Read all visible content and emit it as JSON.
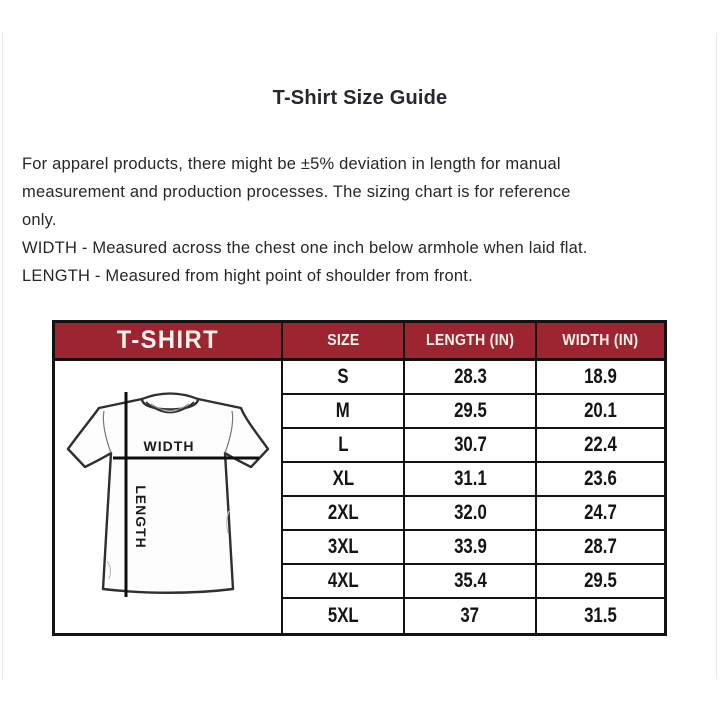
{
  "page": {
    "title": "T-Shirt Size Guide"
  },
  "description": {
    "paragraph_lines": [
      "For apparel products, there might be ±5% deviation in length for manual",
      "measurement and production processes. The sizing chart is for reference",
      "only."
    ],
    "width_note": "WIDTH - Measured across the chest one inch below armhole when laid flat.",
    "length_note": "LENGTH - Measured from hight point of shoulder from front."
  },
  "size_table": {
    "product_label": "T-SHIRT",
    "columns": [
      "SIZE",
      "LENGTH (IN)",
      "WIDTH (IN)"
    ],
    "rows": [
      {
        "size": "S",
        "length": "28.3",
        "width": "18.9"
      },
      {
        "size": "M",
        "length": "29.5",
        "width": "20.1"
      },
      {
        "size": "L",
        "length": "30.7",
        "width": "22.4"
      },
      {
        "size": "XL",
        "length": "31.1",
        "width": "23.6"
      },
      {
        "size": "2XL",
        "length": "32.0",
        "width": "24.7"
      },
      {
        "size": "3XL",
        "length": "33.9",
        "width": "28.7"
      },
      {
        "size": "4XL",
        "length": "35.4",
        "width": "29.5"
      },
      {
        "size": "5XL",
        "length": "37",
        "width": "31.5"
      }
    ]
  },
  "illustration": {
    "width_label": "WIDTH",
    "length_label": "LENGTH"
  },
  "colors": {
    "header_red": "#9c2531",
    "border_black": "#121212",
    "header_text": "#f6f2ec"
  }
}
